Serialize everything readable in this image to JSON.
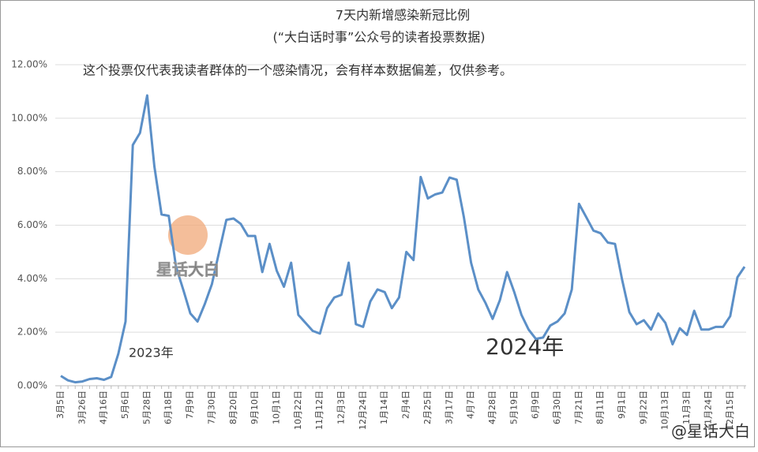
{
  "chart_data": {
    "type": "line",
    "title": "7天内新增感染新冠比例",
    "subtitle": "(“大白话时事”公众号的读者投票数据)",
    "annotations": [
      "这个投票仅代表我读者群体的一个感染情况，会有样本数据偏差，仅供参考。",
      "2023年",
      "2024年",
      "星话大白",
      "@星话大白"
    ],
    "categories": [
      "3月5日",
      null,
      null,
      "3月26日",
      null,
      null,
      "4月16日",
      null,
      null,
      "5月6日",
      null,
      null,
      "5月28日",
      null,
      null,
      "6月18日",
      null,
      null,
      "7月9日",
      null,
      null,
      "7月30日",
      null,
      null,
      "8月20日",
      null,
      null,
      "9月10日",
      null,
      null,
      "10月1日",
      null,
      null,
      "10月22日",
      null,
      null,
      "11月12日",
      null,
      null,
      "12月3日",
      null,
      null,
      "12月24日",
      null,
      null,
      "1月14日",
      null,
      null,
      "2月4日",
      null,
      null,
      "2月25日",
      null,
      null,
      "3月17日",
      null,
      null,
      "4月7日",
      null,
      null,
      "4月28日",
      null,
      null,
      "5月19日",
      null,
      null,
      "6月9日",
      null,
      null,
      "6月30日",
      null,
      null,
      "7月21日",
      null,
      null,
      "8月11日",
      null,
      null,
      "9月1日",
      null,
      null,
      "9月22日",
      null,
      null,
      "10月13日",
      null,
      null,
      "11月3日",
      null,
      null,
      "11月24日",
      null,
      null,
      "12月15日",
      null,
      null
    ],
    "series": [
      {
        "name": "7天内新增感染新冠比例",
        "color": "#5b8fc7",
        "values": [
          0.37,
          0.2,
          0.13,
          0.16,
          0.25,
          0.28,
          0.22,
          0.33,
          1.2,
          2.4,
          9.0,
          9.45,
          10.85,
          8.2,
          6.4,
          6.35,
          4.45,
          3.6,
          2.7,
          2.4,
          3.05,
          3.8,
          5.0,
          6.2,
          6.25,
          6.05,
          5.6,
          5.6,
          4.25,
          5.3,
          4.3,
          3.7,
          4.6,
          2.65,
          2.35,
          2.05,
          1.95,
          2.9,
          3.3,
          3.4,
          4.6,
          2.3,
          2.2,
          3.15,
          3.6,
          3.5,
          2.9,
          3.3,
          5.0,
          4.7,
          7.8,
          7.0,
          7.15,
          7.22,
          7.78,
          7.7,
          6.3,
          4.6,
          3.6,
          3.1,
          2.5,
          3.2,
          4.25,
          3.5,
          2.65,
          2.1,
          1.75,
          1.8,
          2.25,
          2.4,
          2.7,
          3.6,
          6.8,
          6.3,
          5.8,
          5.7,
          5.35,
          5.3,
          3.95,
          2.75,
          2.3,
          2.45,
          2.1,
          2.7,
          2.35,
          1.55,
          2.15,
          1.9,
          2.8,
          2.1,
          2.1,
          2.2,
          2.2,
          2.6,
          4.05,
          4.45
        ]
      }
    ],
    "ylim": [
      0,
      12
    ],
    "yticks": [
      {
        "value": 0,
        "label": "0.00%"
      },
      {
        "value": 2,
        "label": "2.00%"
      },
      {
        "value": 4,
        "label": "4.00%"
      },
      {
        "value": 6,
        "label": "6.00%"
      },
      {
        "value": 8,
        "label": "8.00%"
      },
      {
        "value": 10,
        "label": "10.00%"
      },
      {
        "value": 12,
        "label": "12.00%"
      }
    ],
    "grid": true
  }
}
